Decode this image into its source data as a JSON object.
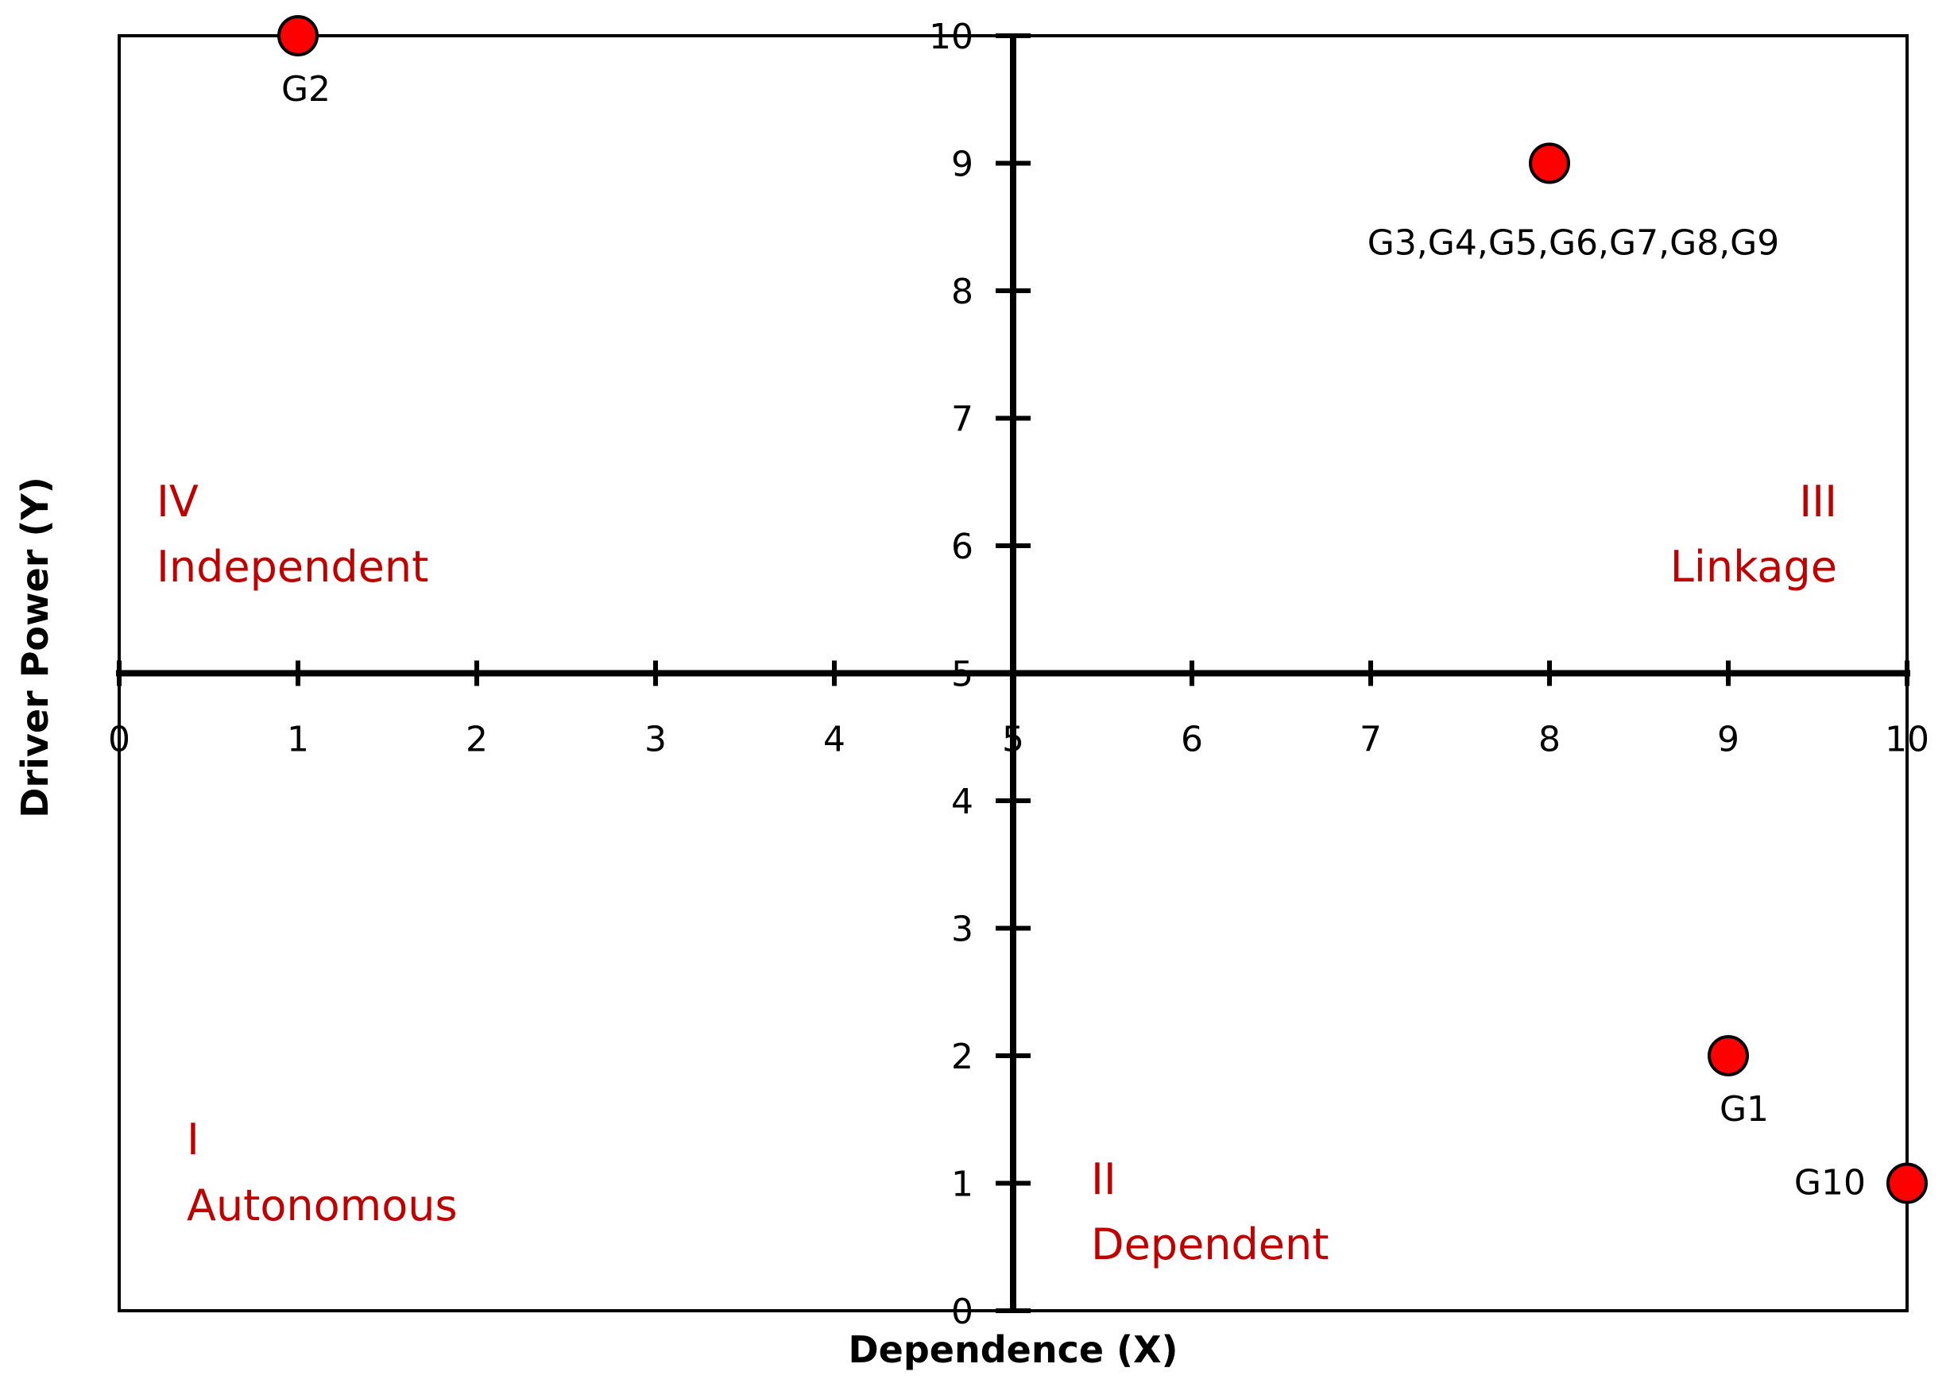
{
  "chart_data": {
    "type": "scatter",
    "xlabel": "Dependence (X)",
    "ylabel": "Driver Power (Y)",
    "xlim": [
      0,
      10
    ],
    "ylim": [
      0,
      10
    ],
    "axes_cross_at": [
      5,
      5
    ],
    "x_ticks": [
      "0",
      "1",
      "2",
      "3",
      "4",
      "5",
      "6",
      "7",
      "8",
      "9",
      "10"
    ],
    "y_ticks": [
      "0",
      "1",
      "2",
      "3",
      "4",
      "5",
      "6",
      "7",
      "8",
      "9",
      "10"
    ],
    "grid": false,
    "legend": "none",
    "marker_color": "#ff0000",
    "quadrant_color": "#c00000",
    "points": [
      {
        "x": 1,
        "y": 10,
        "label": "G2"
      },
      {
        "x": 8,
        "y": 9,
        "label": "G3,G4,G5,G6,G7,G8,G9"
      },
      {
        "x": 9,
        "y": 2,
        "label": "G1"
      },
      {
        "x": 10,
        "y": 1,
        "label": "G10"
      }
    ],
    "quadrants": [
      {
        "numeral": "IV",
        "name": "Independent"
      },
      {
        "numeral": "III",
        "name": "Linkage"
      },
      {
        "numeral": "I",
        "name": "Autonomous"
      },
      {
        "numeral": "II",
        "name": "Dependent"
      }
    ]
  }
}
